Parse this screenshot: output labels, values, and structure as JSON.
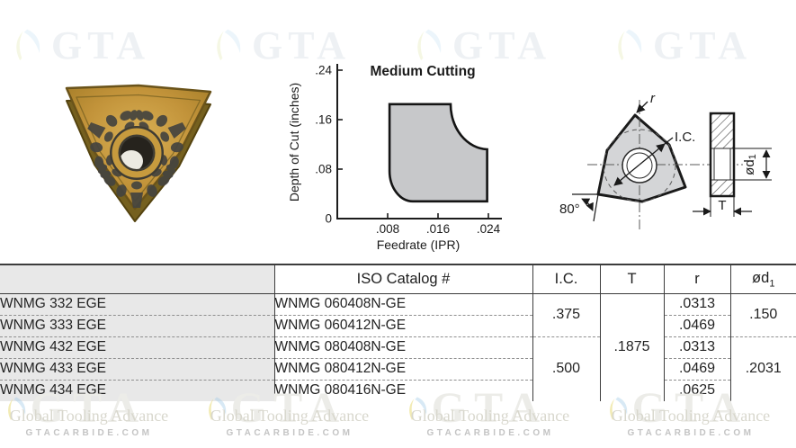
{
  "watermark": {
    "brand": "GTA",
    "company": "Global Tooling Advance",
    "website": "GTACARBIDE.COM"
  },
  "chart_data": {
    "type": "area",
    "title": "Medium Cutting",
    "xlabel": "Feedrate (IPR)",
    "ylabel": "Depth of Cut (inches)",
    "xlim": [
      0,
      0.0257
    ],
    "ylim": [
      0,
      0.24
    ],
    "grid": false,
    "x_ticks": [
      {
        "v": 0.008,
        "label": ".008"
      },
      {
        "v": 0.016,
        "label": ".016"
      },
      {
        "v": 0.024,
        "label": ".024"
      }
    ],
    "y_ticks": [
      {
        "v": 0,
        "label": "0"
      },
      {
        "v": 0.08,
        "label": ".08"
      },
      {
        "v": 0.16,
        "label": ".16"
      },
      {
        "v": 0.24,
        "label": ".24"
      }
    ],
    "region_fill": "#c7c8ca",
    "region_stroke": "#141414",
    "region_path": [
      {
        "cmd": "M",
        "x": 0.0083,
        "y": 0.077
      },
      {
        "cmd": "L",
        "x": 0.0083,
        "y": 0.185
      },
      {
        "cmd": "L",
        "x": 0.018,
        "y": 0.185
      },
      {
        "cmd": "A",
        "rx": 0.006,
        "ry": 0.073,
        "sweep": 0,
        "x": 0.0238,
        "y": 0.112
      },
      {
        "cmd": "L",
        "x": 0.0238,
        "y": 0.028
      },
      {
        "cmd": "L",
        "x": 0.012,
        "y": 0.028
      },
      {
        "cmd": "A",
        "rx": 0.0037,
        "ry": 0.049,
        "sweep": 1,
        "x": 0.0083,
        "y": 0.077
      },
      {
        "cmd": "Z"
      }
    ]
  },
  "diagram": {
    "labels": {
      "corner_radius": "r",
      "inscribed_circle": "I.C.",
      "corner_angle": "80°",
      "hole_diameter": "ød",
      "hole_diameter_sub": "1",
      "thickness": "T"
    }
  },
  "table": {
    "headers": {
      "part": "",
      "iso": "ISO Catalog #",
      "ic": "I.C.",
      "t": "T",
      "r": "r",
      "d1": "ød",
      "d1_sub": "1"
    },
    "rows": [
      {
        "part": "WNMG 332 EGE",
        "iso": "WNMG 060408N-GE",
        "r": ".0313"
      },
      {
        "part": "WNMG 333 EGE",
        "iso": "WNMG 060412N-GE",
        "r": ".0469"
      },
      {
        "part": "WNMG 432 EGE",
        "iso": "WNMG 080408N-GE",
        "r": ".0313"
      },
      {
        "part": "WNMG 433 EGE",
        "iso": "WNMG 080412N-GE",
        "r": ".0469"
      },
      {
        "part": "WNMG 434 EGE",
        "iso": "WNMG 080416N-GE",
        "r": ".0625"
      }
    ],
    "merged": {
      "ic_rows_1_2": ".375",
      "ic_rows_3_5": ".500",
      "t_rows_1_5": ".1875",
      "d1_rows_1_2": ".150",
      "d1_rows_3_5": ".2031"
    }
  },
  "colors": {
    "table_header_gray": "#e8e8e8",
    "chart_region_gray": "#c7c8ca",
    "diagram_fill": "#d4d5d7",
    "insert_gold": "#c2933a"
  }
}
